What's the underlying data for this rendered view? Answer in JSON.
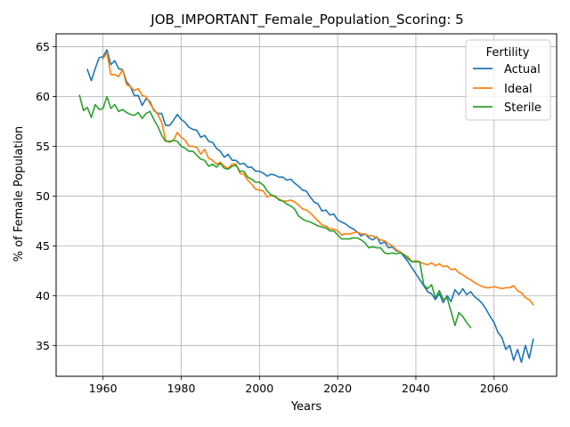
{
  "chart_data": {
    "type": "line",
    "title": "JOB_IMPORTANT_Female_Population_Scoring: 5",
    "xlabel": "Years",
    "ylabel": "% of Female Population",
    "xlim": [
      1948,
      2076
    ],
    "ylim": [
      31.9,
      66.3
    ],
    "xticks": [
      1960,
      1980,
      2000,
      2020,
      2040,
      2060
    ],
    "yticks": [
      35,
      40,
      45,
      50,
      55,
      60,
      65
    ],
    "grid": true,
    "legend": {
      "title": "Fertility",
      "placement": "top-right"
    },
    "series": [
      {
        "name": "Actual",
        "color": "#1f77b4",
        "x": [
          1956,
          1957,
          1958,
          1959,
          1960,
          1961,
          1962,
          1963,
          1964,
          1965,
          1966,
          1967,
          1968,
          1969,
          1970,
          1971,
          1972,
          1973,
          1974,
          1975,
          1976,
          1977,
          1978,
          1979,
          1980,
          1981,
          1982,
          1983,
          1984,
          1985,
          1986,
          1987,
          1988,
          1989,
          1990,
          1991,
          1992,
          1993,
          1994,
          1995,
          1996,
          1997,
          1998,
          1999,
          2000,
          2001,
          2002,
          2003,
          2004,
          2005,
          2006,
          2007,
          2008,
          2009,
          2010,
          2011,
          2012,
          2013,
          2014,
          2015,
          2016,
          2017,
          2018,
          2019,
          2020,
          2021,
          2022,
          2023,
          2024,
          2025,
          2026,
          2027,
          2028,
          2029,
          2030,
          2031,
          2032,
          2033,
          2034,
          2035,
          2036,
          2037,
          2038,
          2039,
          2040,
          2041,
          2042,
          2043,
          2044,
          2045,
          2046,
          2047,
          2048,
          2049,
          2050,
          2051,
          2052,
          2053,
          2054,
          2055,
          2056,
          2057,
          2058,
          2059,
          2060,
          2061,
          2062,
          2063,
          2064,
          2065,
          2066,
          2067,
          2068,
          2069,
          2070
        ],
        "values": [
          62.7,
          61.6,
          62.8,
          63.9,
          64.0,
          64.7,
          63.2,
          63.6,
          62.8,
          62.7,
          61.5,
          61.0,
          60.1,
          60.1,
          59.1,
          59.8,
          59.5,
          58.6,
          58.3,
          58.3,
          57.1,
          57.1,
          57.6,
          58.2,
          57.7,
          57.4,
          56.9,
          56.7,
          56.6,
          55.9,
          56.1,
          55.5,
          55.4,
          54.8,
          54.5,
          53.9,
          54.2,
          53.6,
          53.6,
          53.2,
          53.3,
          52.9,
          52.9,
          52.5,
          52.5,
          52.3,
          52.0,
          52.2,
          52.1,
          51.9,
          51.9,
          51.6,
          51.7,
          51.3,
          51.0,
          50.6,
          50.5,
          49.9,
          49.4,
          49.2,
          48.5,
          48.6,
          48.1,
          48.2,
          47.6,
          47.4,
          47.2,
          46.9,
          46.7,
          46.4,
          46.0,
          46.2,
          45.8,
          45.6,
          45.9,
          45.2,
          45.4,
          44.8,
          44.9,
          44.5,
          44.4,
          43.9,
          43.4,
          42.8,
          42.2,
          41.6,
          41.0,
          40.4,
          40.2,
          39.6,
          40.2,
          39.3,
          40.0,
          39.4,
          40.6,
          40.1,
          40.7,
          40.1,
          40.4,
          39.9,
          39.6,
          39.2,
          38.6,
          37.9,
          37.3,
          36.3,
          35.8,
          34.6,
          35.0,
          33.5,
          34.6,
          33.3,
          35.0,
          33.7,
          35.6
        ]
      },
      {
        "name": "Ideal",
        "color": "#ff7f0e",
        "x": [
          1960,
          1961,
          1962,
          1963,
          1964,
          1965,
          1966,
          1967,
          1968,
          1969,
          1970,
          1971,
          1972,
          1973,
          1974,
          1975,
          1976,
          1977,
          1978,
          1979,
          1980,
          1981,
          1982,
          1983,
          1984,
          1985,
          1986,
          1987,
          1988,
          1989,
          1990,
          1991,
          1992,
          1993,
          1994,
          1995,
          1996,
          1997,
          1998,
          1999,
          2000,
          2001,
          2002,
          2003,
          2004,
          2005,
          2006,
          2007,
          2008,
          2009,
          2010,
          2011,
          2012,
          2013,
          2014,
          2015,
          2016,
          2017,
          2018,
          2019,
          2020,
          2021,
          2022,
          2023,
          2024,
          2025,
          2026,
          2027,
          2028,
          2029,
          2030,
          2031,
          2032,
          2033,
          2034,
          2035,
          2036,
          2037,
          2038,
          2039,
          2040,
          2041,
          2042,
          2043,
          2044,
          2045,
          2046,
          2047,
          2048,
          2049,
          2050,
          2051,
          2052,
          2053,
          2054,
          2055,
          2056,
          2057,
          2058,
          2059,
          2060,
          2061,
          2062,
          2063,
          2064,
          2065,
          2066,
          2067,
          2068,
          2069,
          2070
        ],
        "values": [
          63.8,
          64.4,
          62.2,
          62.2,
          62.0,
          62.7,
          61.2,
          61.0,
          60.6,
          60.8,
          60.1,
          60.0,
          59.3,
          58.7,
          58.2,
          57.4,
          55.6,
          55.4,
          55.6,
          56.4,
          55.9,
          55.6,
          55.0,
          55.0,
          54.9,
          54.2,
          54.7,
          53.8,
          53.6,
          53.2,
          53.4,
          53.0,
          52.8,
          53.2,
          53.2,
          52.3,
          52.2,
          51.6,
          51.2,
          50.7,
          50.6,
          50.5,
          49.9,
          50.1,
          49.9,
          49.7,
          49.5,
          49.5,
          49.6,
          49.4,
          49.1,
          48.7,
          48.6,
          48.3,
          47.9,
          47.5,
          47.1,
          47.0,
          46.7,
          46.7,
          46.5,
          46.1,
          46.2,
          46.2,
          46.3,
          46.4,
          46.2,
          46.2,
          46.0,
          46.0,
          45.8,
          45.6,
          45.5,
          45.2,
          45.0,
          44.6,
          44.4,
          44.1,
          43.9,
          43.4,
          43.5,
          43.4,
          43.2,
          43.1,
          43.3,
          43.0,
          43.2,
          42.9,
          43.0,
          42.6,
          42.7,
          42.3,
          42.1,
          41.8,
          41.6,
          41.3,
          41.1,
          40.9,
          40.8,
          40.8,
          40.9,
          40.8,
          40.7,
          40.8,
          40.8,
          41.0,
          40.5,
          40.3,
          39.8,
          39.6,
          39.1
        ]
      },
      {
        "name": "Sterile",
        "color": "#2ca02c",
        "x": [
          1954,
          1955,
          1956,
          1957,
          1958,
          1959,
          1960,
          1961,
          1962,
          1963,
          1964,
          1965,
          1966,
          1967,
          1968,
          1969,
          1970,
          1971,
          1972,
          1973,
          1974,
          1975,
          1976,
          1977,
          1978,
          1979,
          1980,
          1981,
          1982,
          1983,
          1984,
          1985,
          1986,
          1987,
          1988,
          1989,
          1990,
          1991,
          1992,
          1993,
          1994,
          1995,
          1996,
          1997,
          1998,
          1999,
          2000,
          2001,
          2002,
          2003,
          2004,
          2005,
          2006,
          2007,
          2008,
          2009,
          2010,
          2011,
          2012,
          2013,
          2014,
          2015,
          2016,
          2017,
          2018,
          2019,
          2020,
          2021,
          2022,
          2023,
          2024,
          2025,
          2026,
          2027,
          2028,
          2029,
          2030,
          2031,
          2032,
          2033,
          2034,
          2035,
          2036,
          2037,
          2038,
          2039,
          2040,
          2041,
          2042,
          2043,
          2044,
          2045,
          2046,
          2047,
          2048,
          2049,
          2050,
          2051,
          2052,
          2053,
          2054
        ],
        "values": [
          60.1,
          58.6,
          58.9,
          57.9,
          59.2,
          58.7,
          58.8,
          60.0,
          58.8,
          59.2,
          58.5,
          58.7,
          58.4,
          58.2,
          58.1,
          58.4,
          57.8,
          58.3,
          58.5,
          57.7,
          57.0,
          56.1,
          55.5,
          55.5,
          55.6,
          55.5,
          55.0,
          54.8,
          54.5,
          54.5,
          54.1,
          53.7,
          53.6,
          53.0,
          53.2,
          52.9,
          53.3,
          52.8,
          52.7,
          53.0,
          53.1,
          52.5,
          52.5,
          51.9,
          51.7,
          51.4,
          51.4,
          51.1,
          50.5,
          50.1,
          50.0,
          49.6,
          49.5,
          49.2,
          49.0,
          48.7,
          48.0,
          47.7,
          47.5,
          47.4,
          47.2,
          47.0,
          46.9,
          46.8,
          46.5,
          46.5,
          46.1,
          45.7,
          45.7,
          45.7,
          45.8,
          45.8,
          45.6,
          45.3,
          44.8,
          44.9,
          44.8,
          44.8,
          44.3,
          44.2,
          44.3,
          44.2,
          44.3,
          44.1,
          43.7,
          43.4,
          43.4,
          43.4,
          41.1,
          40.7,
          41.1,
          39.8,
          40.5,
          39.6,
          39.8,
          38.4,
          37.0,
          38.3,
          37.9,
          37.3,
          36.8
        ]
      }
    ]
  }
}
